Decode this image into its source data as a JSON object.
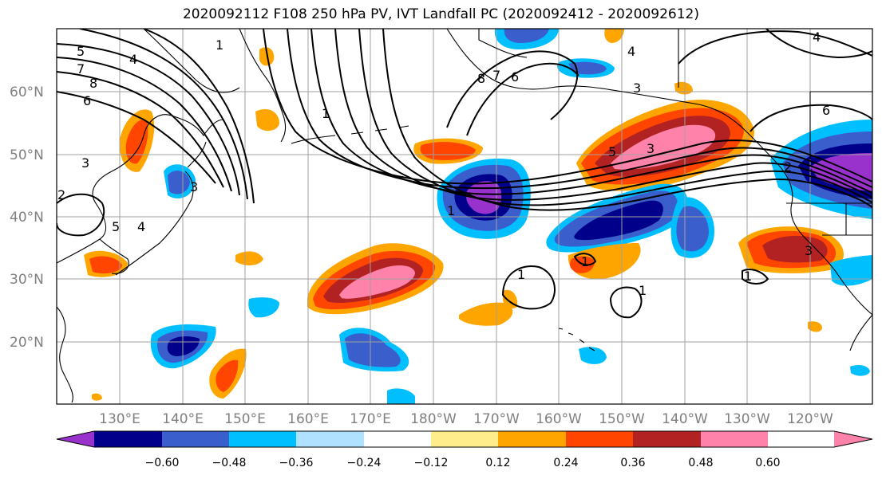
{
  "title": "2020092112 F108 250 hPa PV, IVT Landfall PC (2020092412 - 2020092612)",
  "map": {
    "lat_labels": [
      "60°N",
      "50°N",
      "40°N",
      "30°N",
      "20°N"
    ],
    "lon_labels": [
      "130°E",
      "140°E",
      "150°E",
      "160°E",
      "170°E",
      "180°W",
      "170°W",
      "160°W",
      "150°W",
      "140°W",
      "130°W",
      "120°W"
    ],
    "contour_labels": [
      "5",
      "4",
      "7",
      "8",
      "6",
      "1",
      "3",
      "4",
      "5",
      "2",
      "3",
      "1",
      "8",
      "7",
      "6",
      "4",
      "3",
      "4",
      "5",
      "3",
      "6",
      "1",
      "1",
      "1",
      "1",
      "1",
      "2",
      "3"
    ],
    "colors": {
      "land_outline": "#000000",
      "grid": "#a0a0a0",
      "contour": "#000000"
    }
  },
  "colorbar": {
    "ticks": [
      "−0.60",
      "−0.48",
      "−0.36",
      "−0.24",
      "−0.12",
      "0.12",
      "0.24",
      "0.36",
      "0.48",
      "0.60"
    ],
    "colors": [
      "#9932cc",
      "#00008b",
      "#3a5fcd",
      "#00bfff",
      "#b0e2ff",
      "#ffffff",
      "#ffec8b",
      "#ffa500",
      "#ff4500",
      "#b22222",
      "#ff82ab"
    ]
  }
}
